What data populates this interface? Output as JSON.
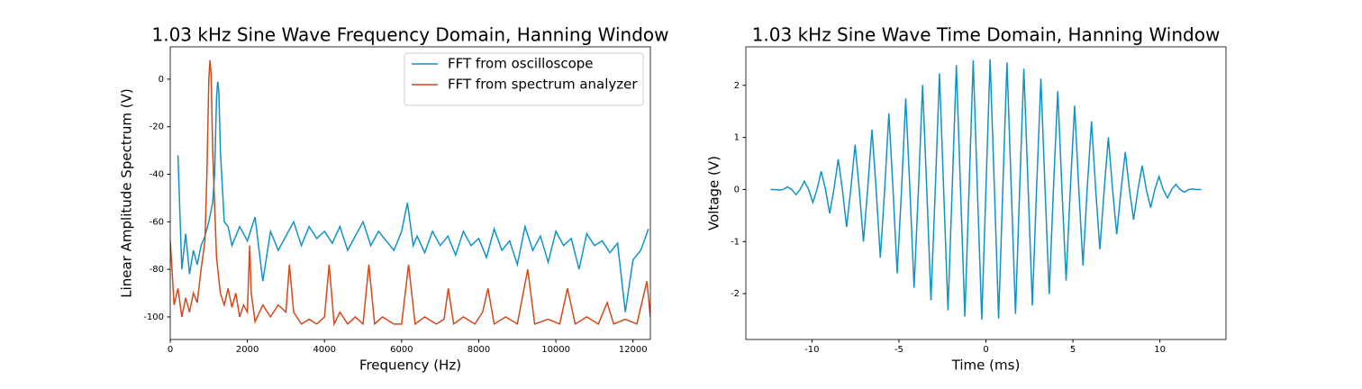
{
  "chart_data": [
    {
      "type": "line",
      "title": "1.03 kHz Sine Wave Frequency Domain, Hanning Window",
      "xlabel": "Frequency (Hz)",
      "ylabel": "Linear Amplitude Spectrum (V)",
      "xlim": [
        0,
        12450
      ],
      "ylim": [
        -109.5,
        13.6
      ],
      "xticks": [
        0,
        2000,
        4000,
        6000,
        8000,
        10000,
        12000
      ],
      "yticks": [
        -100,
        -80,
        -60,
        -40,
        -20,
        0
      ],
      "grid": false,
      "legend": "upper right",
      "series": [
        {
          "name": "FFT from oscilloscope",
          "color": "#1093c7",
          "x": [
            200,
            300,
            400,
            500,
            600,
            700,
            800,
            900,
            1000,
            1100,
            1150,
            1200,
            1230,
            1260,
            1300,
            1400,
            1500,
            1600,
            1800,
            2000,
            2200,
            2400,
            2600,
            2800,
            3000,
            3200,
            3400,
            3600,
            3800,
            4000,
            4200,
            4400,
            4600,
            4800,
            5000,
            5200,
            5400,
            5600,
            5800,
            6000,
            6150,
            6300,
            6400,
            6600,
            6800,
            7000,
            7200,
            7400,
            7600,
            7800,
            8000,
            8200,
            8400,
            8600,
            8800,
            9000,
            9200,
            9400,
            9600,
            9800,
            10000,
            10200,
            10400,
            10600,
            10800,
            11000,
            11200,
            11400,
            11600,
            11800,
            12000,
            12200,
            12400
          ],
          "values": [
            -32,
            -80,
            -65,
            -82,
            -72,
            -78,
            -70,
            -66,
            -60,
            -52,
            -40,
            -8,
            -1,
            -5,
            -30,
            -60,
            -62,
            -70,
            -62,
            -68,
            -58,
            -85,
            -64,
            -72,
            -66,
            -60,
            -70,
            -62,
            -67,
            -64,
            -69,
            -62,
            -72,
            -66,
            -60,
            -70,
            -64,
            -68,
            -72,
            -64,
            -52,
            -70,
            -66,
            -73,
            -64,
            -70,
            -66,
            -74,
            -64,
            -70,
            -67,
            -75,
            -63,
            -72,
            -68,
            -78,
            -62,
            -72,
            -66,
            -77,
            -64,
            -70,
            -67,
            -80,
            -65,
            -70,
            -68,
            -73,
            -69,
            -98,
            -76,
            -72,
            -63
          ]
        },
        {
          "name": "FFT from spectrum analyzer",
          "color": "#d2491a",
          "x": [
            0,
            100,
            200,
            300,
            400,
            500,
            600,
            700,
            800,
            900,
            950,
            1000,
            1030,
            1060,
            1100,
            1200,
            1300,
            1400,
            1500,
            1600,
            1700,
            1800,
            1900,
            2000,
            2060,
            2100,
            2200,
            2400,
            2600,
            2800,
            3000,
            3090,
            3200,
            3400,
            3600,
            3800,
            4000,
            4120,
            4250,
            4400,
            4600,
            4800,
            5000,
            5150,
            5300,
            5500,
            5800,
            6000,
            6180,
            6350,
            6600,
            6900,
            7100,
            7210,
            7350,
            7600,
            7900,
            8100,
            8240,
            8400,
            8700,
            9000,
            9270,
            9450,
            9800,
            10100,
            10300,
            10500,
            10800,
            11100,
            11330,
            11500,
            11800,
            12100,
            12360,
            12450
          ],
          "values": [
            -68,
            -95,
            -88,
            -100,
            -92,
            -98,
            -90,
            -94,
            -80,
            -68,
            -40,
            0,
            8,
            2,
            -30,
            -75,
            -90,
            -95,
            -88,
            -96,
            -90,
            -100,
            -95,
            -98,
            -70,
            -90,
            -102,
            -95,
            -100,
            -95,
            -98,
            -78,
            -98,
            -103,
            -101,
            -103,
            -100,
            -78,
            -103,
            -98,
            -103,
            -100,
            -103,
            -78,
            -103,
            -100,
            -103,
            -103,
            -78,
            -103,
            -100,
            -103,
            -101,
            -88,
            -103,
            -100,
            -103,
            -98,
            -88,
            -103,
            -100,
            -103,
            -80,
            -103,
            -101,
            -103,
            -88,
            -103,
            -100,
            -103,
            -94,
            -103,
            -101,
            -103,
            -85,
            -100
          ]
        }
      ]
    },
    {
      "type": "line",
      "title": "1.03 kHz Sine Wave Time Domain, Hanning Window",
      "xlabel": "Time (ms)",
      "ylabel": "Voltage (V)",
      "xlim": [
        -13.8,
        13.8
      ],
      "ylim": [
        -2.88,
        2.74
      ],
      "xticks": [
        -10,
        -5,
        0,
        5,
        10
      ],
      "yticks": [
        -2,
        -1,
        0,
        1,
        2
      ],
      "grid": false,
      "series": [
        {
          "color": "#1093c7",
          "x": [
            -12.38,
            -12.14,
            -11.89,
            -11.65,
            -11.41,
            -11.16,
            -10.92,
            -10.68,
            -10.44,
            -10.19,
            -9.95,
            -9.71,
            -9.47,
            -9.22,
            -8.98,
            -8.74,
            -8.49,
            -8.25,
            -8.01,
            -7.77,
            -7.52,
            -7.28,
            -7.04,
            -6.8,
            -6.55,
            -6.31,
            -6.07,
            -5.82,
            -5.58,
            -5.34,
            -5.1,
            -4.85,
            -4.61,
            -4.37,
            -4.13,
            -3.88,
            -3.64,
            -3.4,
            -3.16,
            -2.91,
            -2.67,
            -2.43,
            -2.18,
            -1.94,
            -1.7,
            -1.46,
            -1.21,
            -0.97,
            -0.73,
            -0.49,
            -0.24,
            0,
            0.24,
            0.49,
            0.73,
            0.97,
            1.21,
            1.46,
            1.7,
            1.94,
            2.18,
            2.43,
            2.67,
            2.91,
            3.16,
            3.4,
            3.64,
            3.88,
            4.13,
            4.37,
            4.61,
            4.85,
            5.1,
            5.34,
            5.58,
            5.82,
            6.07,
            6.31,
            6.55,
            6.8,
            7.04,
            7.28,
            7.52,
            7.77,
            8.01,
            8.25,
            8.49,
            8.74,
            8.98,
            9.22,
            9.47,
            9.71,
            9.95,
            10.19,
            10.44,
            10.68,
            10.92,
            11.16,
            11.41,
            11.65,
            11.89,
            12.14,
            12.38
          ],
          "values": [
            0,
            0,
            -0.01,
            0,
            0.05,
            0,
            -0.1,
            0,
            0.16,
            0,
            -0.25,
            0,
            0.35,
            0,
            -0.46,
            0,
            0.58,
            0,
            -0.72,
            0,
            0.86,
            0,
            -1.0,
            0,
            1.15,
            0,
            -1.31,
            0,
            1.46,
            0,
            -1.61,
            0,
            1.75,
            0,
            -1.89,
            0,
            2.01,
            0,
            -2.13,
            0,
            2.23,
            0,
            -2.32,
            0,
            2.39,
            0,
            -2.44,
            0,
            2.48,
            0,
            -2.5,
            0,
            2.5,
            0,
            -2.48,
            0,
            2.44,
            0,
            -2.39,
            0,
            2.32,
            0,
            -2.23,
            0,
            2.13,
            0,
            -2.01,
            0,
            1.89,
            0,
            -1.75,
            0,
            1.61,
            0,
            -1.46,
            0,
            1.31,
            0,
            -1.15,
            0,
            1.0,
            0,
            -0.86,
            0,
            0.72,
            0,
            -0.58,
            0,
            0.46,
            0,
            -0.35,
            0,
            0.25,
            0,
            -0.16,
            0,
            0.1,
            0,
            -0.05,
            0,
            0.01,
            0,
            0
          ]
        }
      ]
    }
  ]
}
